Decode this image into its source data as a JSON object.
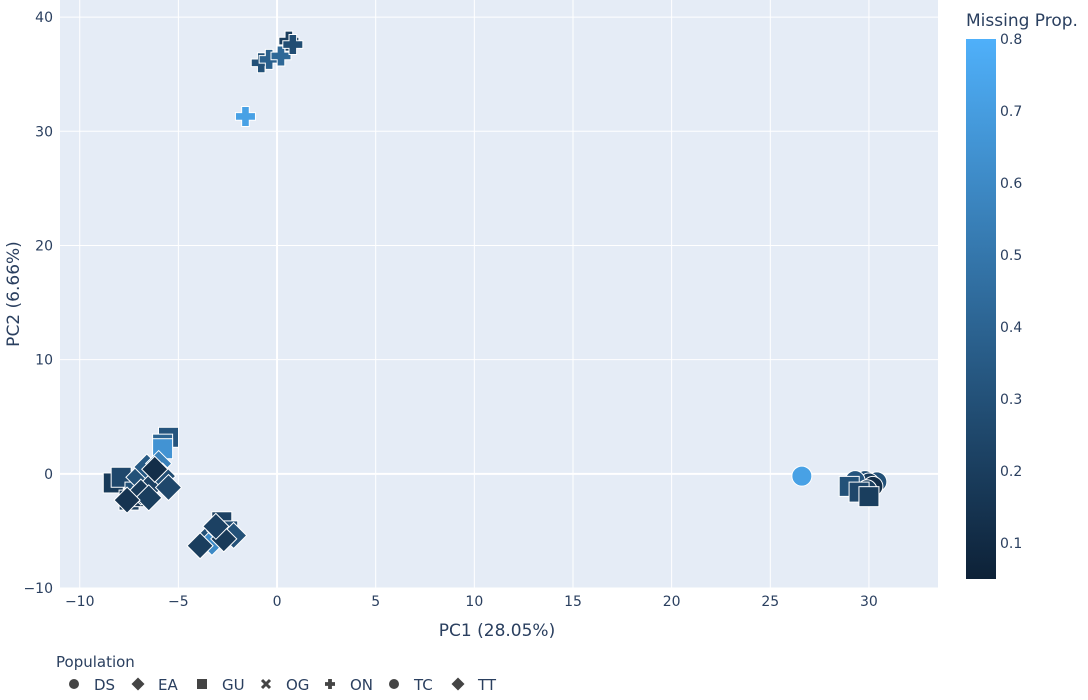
{
  "chart_data": {
    "type": "scatter",
    "title": "",
    "xlabel": "PC1 (28.05%)",
    "ylabel": "PC2 (6.66%)",
    "xlim": [
      -11,
      33.5
    ],
    "ylim": [
      -10,
      41.5
    ],
    "xticks": [
      -10,
      -5,
      0,
      5,
      10,
      15,
      20,
      25,
      30
    ],
    "yticks": [
      -10,
      0,
      10,
      20,
      30,
      40
    ],
    "grid": true,
    "colorbar": {
      "title": "Missing Prop.",
      "range": [
        0.05,
        0.8
      ],
      "ticks": [
        0.1,
        0.2,
        0.3,
        0.4,
        0.5,
        0.6,
        0.7,
        0.8
      ],
      "color_low": "#0d2137",
      "color_high": "#4fb0fa"
    },
    "legend": {
      "title": "Population",
      "placement": "bottom",
      "entries": [
        {
          "label": "DS",
          "symbol": "circle"
        },
        {
          "label": "EA",
          "symbol": "diamond"
        },
        {
          "label": "GU",
          "symbol": "square"
        },
        {
          "label": "OG",
          "symbol": "x"
        },
        {
          "label": "ON",
          "symbol": "cross"
        },
        {
          "label": "TC",
          "symbol": "circle"
        },
        {
          "label": "TT",
          "symbol": "diamond"
        }
      ]
    },
    "series": [
      {
        "name": "DS",
        "symbol": "circle",
        "points": [
          {
            "x": 26.6,
            "y": -0.2,
            "m": 0.72
          },
          {
            "x": 29.4,
            "y": -0.9,
            "m": 0.2
          },
          {
            "x": 29.8,
            "y": -0.6,
            "m": 0.28
          },
          {
            "x": 30.1,
            "y": -1.0,
            "m": 0.15
          },
          {
            "x": 30.4,
            "y": -0.7,
            "m": 0.3
          },
          {
            "x": 29.6,
            "y": -1.2,
            "m": 0.22
          },
          {
            "x": 30.0,
            "y": -0.8,
            "m": 0.18
          }
        ]
      },
      {
        "name": "TC",
        "symbol": "circle",
        "points": [
          {
            "x": 29.0,
            "y": -1.0,
            "m": 0.25
          },
          {
            "x": 29.3,
            "y": -0.6,
            "m": 0.32
          },
          {
            "x": 30.2,
            "y": -1.1,
            "m": 0.12
          },
          {
            "x": 29.9,
            "y": -1.4,
            "m": 0.2
          }
        ]
      },
      {
        "name": "GU",
        "symbol": "square",
        "points": [
          {
            "x": -8.3,
            "y": -0.8,
            "m": 0.18
          },
          {
            "x": -7.9,
            "y": -0.3,
            "m": 0.25
          },
          {
            "x": -7.5,
            "y": -2.3,
            "m": 0.2
          },
          {
            "x": -7.2,
            "y": -1.6,
            "m": 0.3
          },
          {
            "x": -6.8,
            "y": -2.0,
            "m": 0.15
          },
          {
            "x": -5.5,
            "y": 3.2,
            "m": 0.32
          },
          {
            "x": -5.8,
            "y": 2.6,
            "m": 0.4
          },
          {
            "x": -5.8,
            "y": 2.2,
            "m": 0.65
          },
          {
            "x": -2.8,
            "y": -4.2,
            "m": 0.22
          },
          {
            "x": -2.5,
            "y": -5.0,
            "m": 0.28
          },
          {
            "x": 29.0,
            "y": -1.1,
            "m": 0.3
          },
          {
            "x": 29.5,
            "y": -1.6,
            "m": 0.25
          },
          {
            "x": 30.0,
            "y": -2.0,
            "m": 0.2
          }
        ]
      },
      {
        "name": "EA",
        "symbol": "diamond",
        "points": [
          {
            "x": -7.0,
            "y": -0.3,
            "m": 0.3
          },
          {
            "x": -6.6,
            "y": 0.6,
            "m": 0.35
          },
          {
            "x": -6.3,
            "y": -0.9,
            "m": 0.22
          },
          {
            "x": -6.0,
            "y": 0.9,
            "m": 0.55
          },
          {
            "x": -5.8,
            "y": -0.2,
            "m": 0.28
          },
          {
            "x": -5.5,
            "y": -1.2,
            "m": 0.25
          },
          {
            "x": -6.9,
            "y": -1.6,
            "m": 0.18
          },
          {
            "x": -6.5,
            "y": -2.1,
            "m": 0.2
          },
          {
            "x": -7.6,
            "y": -2.3,
            "m": 0.15
          },
          {
            "x": -6.2,
            "y": 0.4,
            "m": 0.12
          }
        ]
      },
      {
        "name": "TT",
        "symbol": "diamond",
        "points": [
          {
            "x": -3.6,
            "y": -5.8,
            "m": 0.3
          },
          {
            "x": -3.3,
            "y": -6.0,
            "m": 0.6
          },
          {
            "x": -2.9,
            "y": -5.0,
            "m": 0.25
          },
          {
            "x": -2.2,
            "y": -5.4,
            "m": 0.3
          },
          {
            "x": -3.9,
            "y": -6.3,
            "m": 0.2
          },
          {
            "x": -2.7,
            "y": -5.7,
            "m": 0.18
          },
          {
            "x": -3.1,
            "y": -4.6,
            "m": 0.22
          }
        ]
      },
      {
        "name": "ON",
        "symbol": "cross",
        "points": [
          {
            "x": -1.6,
            "y": 31.3,
            "m": 0.72
          },
          {
            "x": -0.8,
            "y": 36.0,
            "m": 0.3
          },
          {
            "x": -0.4,
            "y": 36.3,
            "m": 0.38
          },
          {
            "x": 0.2,
            "y": 36.6,
            "m": 0.42
          },
          {
            "x": 0.6,
            "y": 37.9,
            "m": 0.2
          },
          {
            "x": 0.8,
            "y": 37.6,
            "m": 0.28
          }
        ]
      }
    ]
  }
}
